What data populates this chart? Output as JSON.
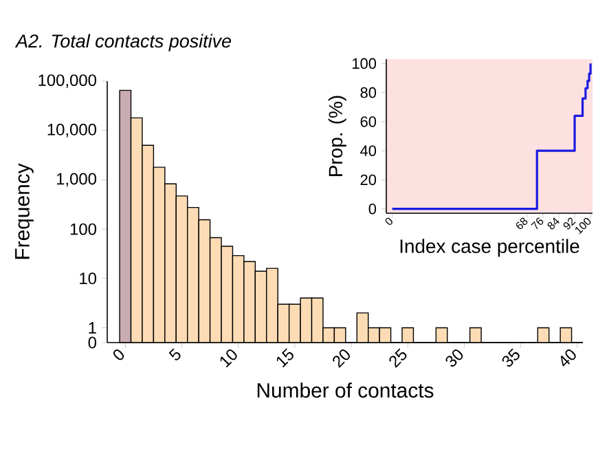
{
  "chart_data": [
    {
      "type": "histogram",
      "title": "A2. Total contacts positive",
      "xlabel": "Number of contacts",
      "ylabel": "Frequency",
      "bins": [
        -0.5,
        0.5,
        1.5,
        2.5,
        3.5,
        4.5,
        5.5,
        6.5,
        7.5,
        8.5,
        9.5,
        10.5,
        11.5,
        12.5,
        13.5,
        14.5,
        15.5,
        16.5,
        17.5,
        18.5,
        19.5,
        20.5,
        21.5,
        22.5,
        23.5,
        24.5,
        25.5,
        26.5,
        27.5,
        28.5,
        29.5,
        30.5,
        31.5,
        32.5,
        33.5,
        34.5,
        35.5,
        36.5,
        37.5,
        38.5,
        39.5,
        40.5
      ],
      "values": [
        65000,
        18000,
        5000,
        1800,
        830,
        470,
        275,
        155,
        67,
        45,
        29,
        22,
        14,
        16,
        3,
        3,
        4,
        4,
        1,
        1,
        0,
        2,
        1,
        1,
        0,
        1,
        0,
        0,
        1,
        0,
        0,
        1,
        0,
        0,
        0,
        0,
        0,
        1,
        0,
        1,
        0
      ],
      "colors": [
        "#c9abb2",
        "#fddcb5",
        "#fddcb5",
        "#fddcb5",
        "#fddcb5",
        "#fddcb5",
        "#fddcb5",
        "#fddcb5",
        "#fddcb5",
        "#fddcb5",
        "#fddcb5",
        "#fddcb5",
        "#fddcb5",
        "#fddcb5",
        "#fddcb5",
        "#fddcb5",
        "#fddcb5",
        "#fddcb5",
        "#fddcb5",
        "#fddcb5",
        "#fddcb5",
        "#fddcb5",
        "#fddcb5",
        "#fddcb5",
        "#fddcb5",
        "#fddcb5",
        "#fddcb5",
        "#fddcb5",
        "#fddcb5",
        "#fddcb5",
        "#fddcb5",
        "#fddcb5",
        "#fddcb5",
        "#fddcb5",
        "#fddcb5",
        "#fddcb5",
        "#fddcb5",
        "#fddcb5",
        "#fddcb5",
        "#fddcb5",
        "#fddcb5"
      ],
      "xlim": [
        -1.6,
        40.5
      ],
      "xticks": [
        0,
        5,
        10,
        15,
        20,
        25,
        30,
        35,
        40
      ],
      "ylim": [
        0,
        100000
      ],
      "log": true,
      "yticks": [
        0,
        1,
        10,
        100,
        {
          "value": 1000,
          "label": "1,000"
        },
        {
          "value": 10000,
          "label": "10,000"
        },
        {
          "value": 100000,
          "label": "100,000"
        }
      ]
    },
    {
      "type": "step",
      "xlabel": "Index case percentile",
      "ylabel": "Prop. (%)",
      "x": [
        0,
        73,
        92,
        96,
        97.5,
        98.5,
        99.3,
        100
      ],
      "values": [
        0,
        40,
        64,
        76,
        83,
        88,
        93,
        100
      ],
      "color": "#1a1ae0",
      "xlim": [
        -3,
        101
      ],
      "xticks": [
        0,
        68,
        76,
        84,
        92,
        100
      ],
      "ylim": [
        -3,
        103
      ],
      "yticks": [
        0,
        20,
        40,
        60,
        80,
        100
      ]
    }
  ]
}
